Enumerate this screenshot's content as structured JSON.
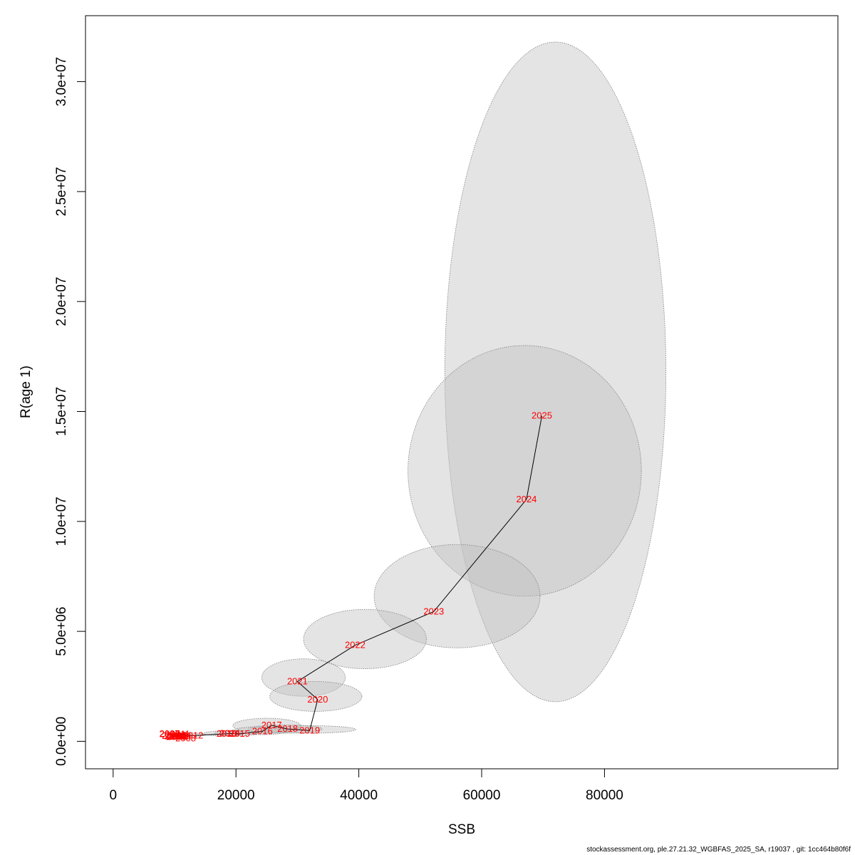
{
  "chart_data": {
    "type": "scatter",
    "xlabel": "SSB",
    "ylabel": "R(age 1)",
    "xlim": [
      -4500,
      118000
    ],
    "ylim": [
      -1250000,
      33000000
    ],
    "x_ticks": [
      0,
      20000,
      40000,
      60000,
      80000
    ],
    "x_tick_labels": [
      "0",
      "20000",
      "40000",
      "60000",
      "80000"
    ],
    "y_ticks": [
      0,
      5000000,
      10000000,
      15000000,
      20000000,
      25000000,
      30000000
    ],
    "y_tick_labels": [
      "0.0e+00",
      "5.0e+06",
      "1.0e+07",
      "1.5e+07",
      "2.0e+07",
      "2.5e+07",
      "3.0e+07"
    ],
    "grid": false,
    "points": [
      {
        "year": "2002",
        "ssb": 9200,
        "r": 320000
      },
      {
        "year": "2003",
        "ssb": 9600,
        "r": 240000
      },
      {
        "year": "2004",
        "ssb": 10000,
        "r": 220000
      },
      {
        "year": "2005",
        "ssb": 10300,
        "r": 200000
      },
      {
        "year": "2006",
        "ssb": 10600,
        "r": 210000
      },
      {
        "year": "2007",
        "ssb": 9200,
        "r": 330000
      },
      {
        "year": "2008",
        "ssb": 11800,
        "r": 120000
      },
      {
        "year": "2009",
        "ssb": 11000,
        "r": 220000
      },
      {
        "year": "2010",
        "ssb": 10200,
        "r": 280000
      },
      {
        "year": "2011",
        "ssb": 10900,
        "r": 320000
      },
      {
        "year": "2012",
        "ssb": 13000,
        "r": 260000
      },
      {
        "year": "2013",
        "ssb": 18500,
        "r": 340000
      },
      {
        "year": "2014",
        "ssb": 19000,
        "r": 360000
      },
      {
        "year": "2015",
        "ssb": 20600,
        "r": 340000
      },
      {
        "year": "2016",
        "ssb": 24300,
        "r": 450000
      },
      {
        "year": "2017",
        "ssb": 25800,
        "r": 730000
      },
      {
        "year": "2018",
        "ssb": 28400,
        "r": 560000
      },
      {
        "year": "2019",
        "ssb": 32000,
        "r": 490000
      },
      {
        "year": "2020",
        "ssb": 33300,
        "r": 1900000
      },
      {
        "year": "2021",
        "ssb": 30000,
        "r": 2720000
      },
      {
        "year": "2022",
        "ssb": 39400,
        "r": 4370000
      },
      {
        "year": "2023",
        "ssb": 52200,
        "r": 5900000
      },
      {
        "year": "2024",
        "ssb": 67300,
        "r": 11000000
      },
      {
        "year": "2025",
        "ssb": 69800,
        "r": 14800000
      }
    ],
    "confidence_ellipses": [
      {
        "year": "2025",
        "center": [
          72000,
          16800000
        ],
        "x_radius": 18000,
        "y_radius": 15000000
      },
      {
        "year": "2024",
        "center": [
          67000,
          12300000
        ],
        "x_radius": 19000,
        "y_radius": 5700000
      },
      {
        "year": "2023",
        "center": [
          56000,
          6600000
        ],
        "x_radius": 13500,
        "y_radius": 2350000
      },
      {
        "year": "2022",
        "center": [
          41000,
          4650000
        ],
        "x_radius": 10000,
        "y_radius": 1350000
      },
      {
        "year": "2021",
        "center": [
          31000,
          2900000
        ],
        "x_radius": 6800,
        "y_radius": 850000
      },
      {
        "year": "2020",
        "center": [
          33000,
          2040000
        ],
        "x_radius": 7500,
        "y_radius": 680000
      },
      {
        "year": "2019",
        "center": [
          32000,
          540000
        ],
        "x_radius": 7500,
        "y_radius": 170000
      },
      {
        "year": "2018",
        "center": [
          28000,
          560000
        ],
        "x_radius": 6000,
        "y_radius": 190000
      },
      {
        "year": "2017",
        "center": [
          25000,
          710000
        ],
        "x_radius": 5500,
        "y_radius": 340000
      },
      {
        "year": "2016",
        "center": [
          24000,
          480000
        ],
        "x_radius": 4500,
        "y_radius": 180000
      },
      {
        "year": "2015",
        "center": [
          20000,
          370000
        ],
        "x_radius": 3500,
        "y_radius": 120000
      },
      {
        "year": "2013",
        "center": [
          18000,
          360000
        ],
        "x_radius": 3200,
        "y_radius": 110000
      },
      {
        "year": "2012",
        "center": [
          12500,
          300000
        ],
        "x_radius": 2500,
        "y_radius": 80000
      },
      {
        "year": "2010",
        "center": [
          10200,
          290000
        ],
        "x_radius": 1500,
        "y_radius": 60000
      }
    ],
    "colors": {
      "labels": "#ff0000",
      "ellipse_fill": "rgba(190,190,190,0.42)",
      "ellipse_stroke": "#7f7f7f",
      "line": "#000000"
    }
  },
  "footer": "stockassessment.org, ple.27.21.32_WGBFAS_2025_SA, r19037 , git: 1cc464b80f6f"
}
